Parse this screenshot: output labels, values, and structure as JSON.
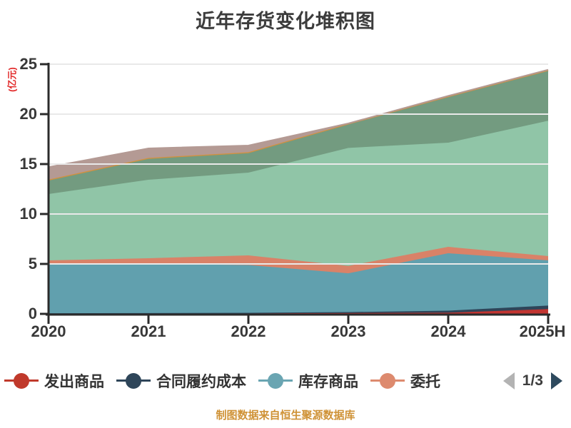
{
  "title": "近年存货变化堆积图",
  "caption": "制图数据来自恒生聚源数据库",
  "y_axis": {
    "unit": "(亿元)"
  },
  "legend": {
    "visible_items": [
      {
        "label": "发出商品",
        "color": "#c0392b"
      },
      {
        "label": "合同履约成本",
        "color": "#2e4559"
      },
      {
        "label": "库存商品",
        "color": "#6aa5b2"
      },
      {
        "label": "委托",
        "color": "#dd8a6e"
      }
    ],
    "page_indicator": "1/3",
    "prev_arrow_color": "#b3b3b3",
    "next_arrow_color": "#2e4a5e"
  },
  "chart_data": {
    "type": "area",
    "stacked": true,
    "title": "近年存货变化堆积图",
    "ylabel": "(亿元)",
    "categories": [
      "2020",
      "2021",
      "2022",
      "2023",
      "2024",
      "2025H"
    ],
    "ylim": [
      0,
      25
    ],
    "yticks": [
      0,
      5,
      10,
      15,
      20,
      25
    ],
    "grid": true,
    "legend_position": "bottom",
    "series": [
      {
        "name": "发出商品",
        "color": "#c23531",
        "values": [
          0.03,
          0.04,
          0.06,
          0.08,
          0.12,
          0.48
        ]
      },
      {
        "name": "合同履约成本",
        "color": "#2e4559",
        "values": [
          0.03,
          0.04,
          0.05,
          0.1,
          0.2,
          0.35
        ]
      },
      {
        "name": "库存商品",
        "color": "#61a0ae",
        "values": [
          4.94,
          4.92,
          4.78,
          3.88,
          5.75,
          4.53
        ]
      },
      {
        "name": "委托",
        "color": "#d98268",
        "values": [
          0.36,
          0.57,
          0.97,
          0.74,
          0.64,
          0.43
        ]
      },
      {
        "name": "",
        "color": "#90c5a7",
        "values": [
          6.64,
          7.86,
          8.28,
          11.82,
          10.43,
          13.55
        ]
      },
      {
        "name": "",
        "color": "#739b80",
        "values": [
          1.35,
          2.09,
          1.95,
          2.34,
          4.56,
          4.98
        ]
      },
      {
        "name": "",
        "color": "#d1913f",
        "values": [
          0.1,
          0.1,
          0.1,
          0.08,
          0.1,
          0.1
        ]
      },
      {
        "name": "",
        "color": "#b49a94",
        "values": [
          1.25,
          0.95,
          0.67,
          0.03,
          0.03,
          0.03
        ]
      }
    ],
    "colors": {
      "grid_line": "#e9e9e9",
      "axis_line": "#2b2b2b",
      "tick_text": "#383838"
    }
  }
}
